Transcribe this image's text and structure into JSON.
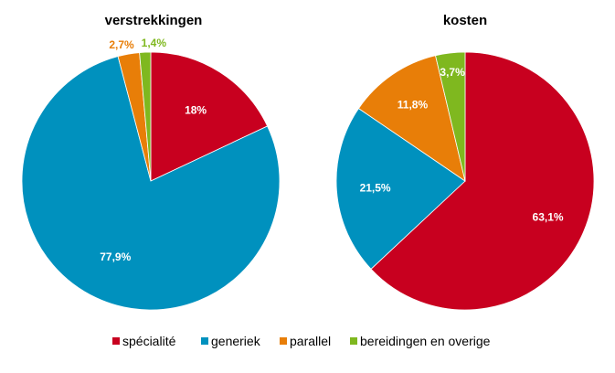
{
  "chart_data": [
    {
      "type": "pie",
      "title": "verstrekkingen",
      "slices": [
        {
          "name": "spécialité",
          "value": 18,
          "label": "18%",
          "color": "#c8001f"
        },
        {
          "name": "generiek",
          "value": 77.9,
          "label": "77,9%",
          "color": "#0091be"
        },
        {
          "name": "parallel",
          "value": 2.7,
          "label": "2,7%",
          "color": "#e87e08"
        },
        {
          "name": "bereidingen en overige",
          "value": 1.4,
          "label": "1,4%",
          "color": "#7fb81f"
        }
      ]
    },
    {
      "type": "pie",
      "title": "kosten",
      "slices": [
        {
          "name": "spécialité",
          "value": 63.1,
          "label": "63,1%",
          "color": "#c8001f"
        },
        {
          "name": "generiek",
          "value": 21.5,
          "label": "21,5%",
          "color": "#0091be"
        },
        {
          "name": "parallel",
          "value": 11.8,
          "label": "11,8%",
          "color": "#e87e08"
        },
        {
          "name": "bereidingen en overige",
          "value": 3.7,
          "label": "3,7%",
          "color": "#7fb81f"
        }
      ]
    }
  ],
  "legend": {
    "placement": "bottom",
    "items": [
      {
        "label": "spécialité",
        "color": "#c8001f"
      },
      {
        "label": "generiek",
        "color": "#0091be"
      },
      {
        "label": "parallel",
        "color": "#e87e08"
      },
      {
        "label": "bereidingen en overige",
        "color": "#7fb81f"
      }
    ]
  }
}
